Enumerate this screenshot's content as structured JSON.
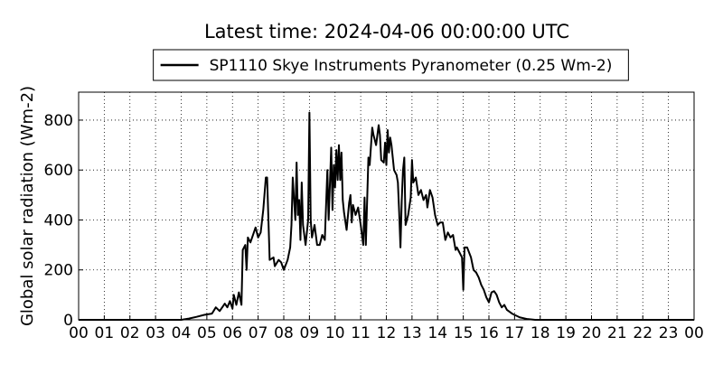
{
  "chart_data": {
    "type": "line",
    "title": "Latest time: 2024-04-06 00:00:00 UTC",
    "y_label": "Global solar radiation (Wm-2)",
    "grid": true,
    "legend": "upper center",
    "xlim": [
      0,
      24
    ],
    "ylim": [
      0,
      912
    ],
    "yticks": [
      0,
      200,
      400,
      600,
      800
    ],
    "xticks": [
      {
        "value": 0,
        "label": "00"
      },
      {
        "value": 1,
        "label": "01"
      },
      {
        "value": 2,
        "label": "02"
      },
      {
        "value": 3,
        "label": "03"
      },
      {
        "value": 4,
        "label": "04"
      },
      {
        "value": 5,
        "label": "05"
      },
      {
        "value": 6,
        "label": "06"
      },
      {
        "value": 7,
        "label": "07"
      },
      {
        "value": 8,
        "label": "08"
      },
      {
        "value": 9,
        "label": "09"
      },
      {
        "value": 10,
        "label": "10"
      },
      {
        "value": 11,
        "label": "11"
      },
      {
        "value": 12,
        "label": "12"
      },
      {
        "value": 13,
        "label": "13"
      },
      {
        "value": 14,
        "label": "14"
      },
      {
        "value": 15,
        "label": "15"
      },
      {
        "value": 16,
        "label": "16"
      },
      {
        "value": 17,
        "label": "17"
      },
      {
        "value": 18,
        "label": "18"
      },
      {
        "value": 19,
        "label": "19"
      },
      {
        "value": 20,
        "label": "20"
      },
      {
        "value": 21,
        "label": "21"
      },
      {
        "value": 22,
        "label": "22"
      },
      {
        "value": 23,
        "label": "23"
      },
      {
        "value": 24,
        "label": "00"
      }
    ],
    "x": [
      0,
      4.0,
      4.3,
      4.6,
      4.9,
      5.2,
      5.35,
      5.5,
      5.7,
      5.8,
      5.9,
      6.0,
      6.05,
      6.15,
      6.25,
      6.35,
      6.4,
      6.5,
      6.55,
      6.6,
      6.7,
      6.8,
      6.9,
      7.0,
      7.1,
      7.2,
      7.3,
      7.35,
      7.45,
      7.6,
      7.65,
      7.8,
      7.9,
      8.0,
      8.15,
      8.25,
      8.3,
      8.35,
      8.45,
      8.5,
      8.55,
      8.6,
      8.65,
      8.7,
      8.75,
      8.85,
      8.95,
      9.0,
      9.05,
      9.1,
      9.2,
      9.3,
      9.4,
      9.5,
      9.6,
      9.7,
      9.75,
      9.85,
      9.9,
      9.95,
      10.0,
      10.05,
      10.1,
      10.15,
      10.2,
      10.25,
      10.3,
      10.35,
      10.45,
      10.55,
      10.6,
      10.65,
      10.7,
      10.8,
      10.9,
      11.0,
      11.1,
      11.15,
      11.2,
      11.3,
      11.35,
      11.45,
      11.5,
      11.6,
      11.7,
      11.75,
      11.8,
      11.9,
      11.95,
      12.0,
      12.05,
      12.1,
      12.15,
      12.2,
      12.25,
      12.3,
      12.4,
      12.45,
      12.5,
      12.55,
      12.6,
      12.65,
      12.7,
      12.75,
      12.85,
      12.95,
      13.0,
      13.05,
      13.15,
      13.25,
      13.35,
      13.45,
      13.55,
      13.6,
      13.7,
      13.8,
      13.9,
      14.0,
      14.1,
      14.2,
      14.3,
      14.4,
      14.5,
      14.6,
      14.7,
      14.75,
      14.85,
      14.95,
      15.0,
      15.05,
      15.15,
      15.3,
      15.4,
      15.5,
      15.6,
      15.7,
      15.8,
      15.9,
      16.0,
      16.1,
      16.2,
      16.3,
      16.4,
      16.5,
      16.6,
      16.7,
      16.9,
      17.2,
      17.5,
      17.8,
      24
    ],
    "series": [
      {
        "name": "SP1110 Skye Instruments Pyranometer (0.25 Wm-2)",
        "color": "#000000",
        "values": [
          0,
          0,
          5,
          12,
          20,
          25,
          50,
          35,
          65,
          50,
          75,
          45,
          100,
          60,
          110,
          60,
          280,
          300,
          200,
          330,
          310,
          340,
          370,
          330,
          350,
          440,
          570,
          570,
          240,
          250,
          215,
          240,
          230,
          200,
          240,
          290,
          380,
          570,
          400,
          630,
          420,
          480,
          320,
          550,
          380,
          300,
          400,
          830,
          400,
          330,
          380,
          300,
          300,
          340,
          320,
          600,
          400,
          690,
          440,
          620,
          530,
          680,
          560,
          700,
          560,
          670,
          480,
          430,
          360,
          470,
          500,
          390,
          460,
          420,
          450,
          380,
          300,
          490,
          300,
          650,
          620,
          770,
          740,
          700,
          780,
          740,
          640,
          630,
          710,
          620,
          760,
          670,
          730,
          700,
          650,
          600,
          580,
          550,
          430,
          290,
          480,
          600,
          650,
          380,
          420,
          490,
          640,
          550,
          570,
          500,
          520,
          480,
          500,
          450,
          520,
          490,
          420,
          380,
          390,
          390,
          320,
          350,
          330,
          340,
          280,
          290,
          270,
          250,
          120,
          290,
          290,
          250,
          200,
          190,
          170,
          140,
          120,
          90,
          70,
          110,
          115,
          100,
          70,
          50,
          60,
          40,
          25,
          10,
          3,
          0,
          0
        ]
      }
    ]
  }
}
